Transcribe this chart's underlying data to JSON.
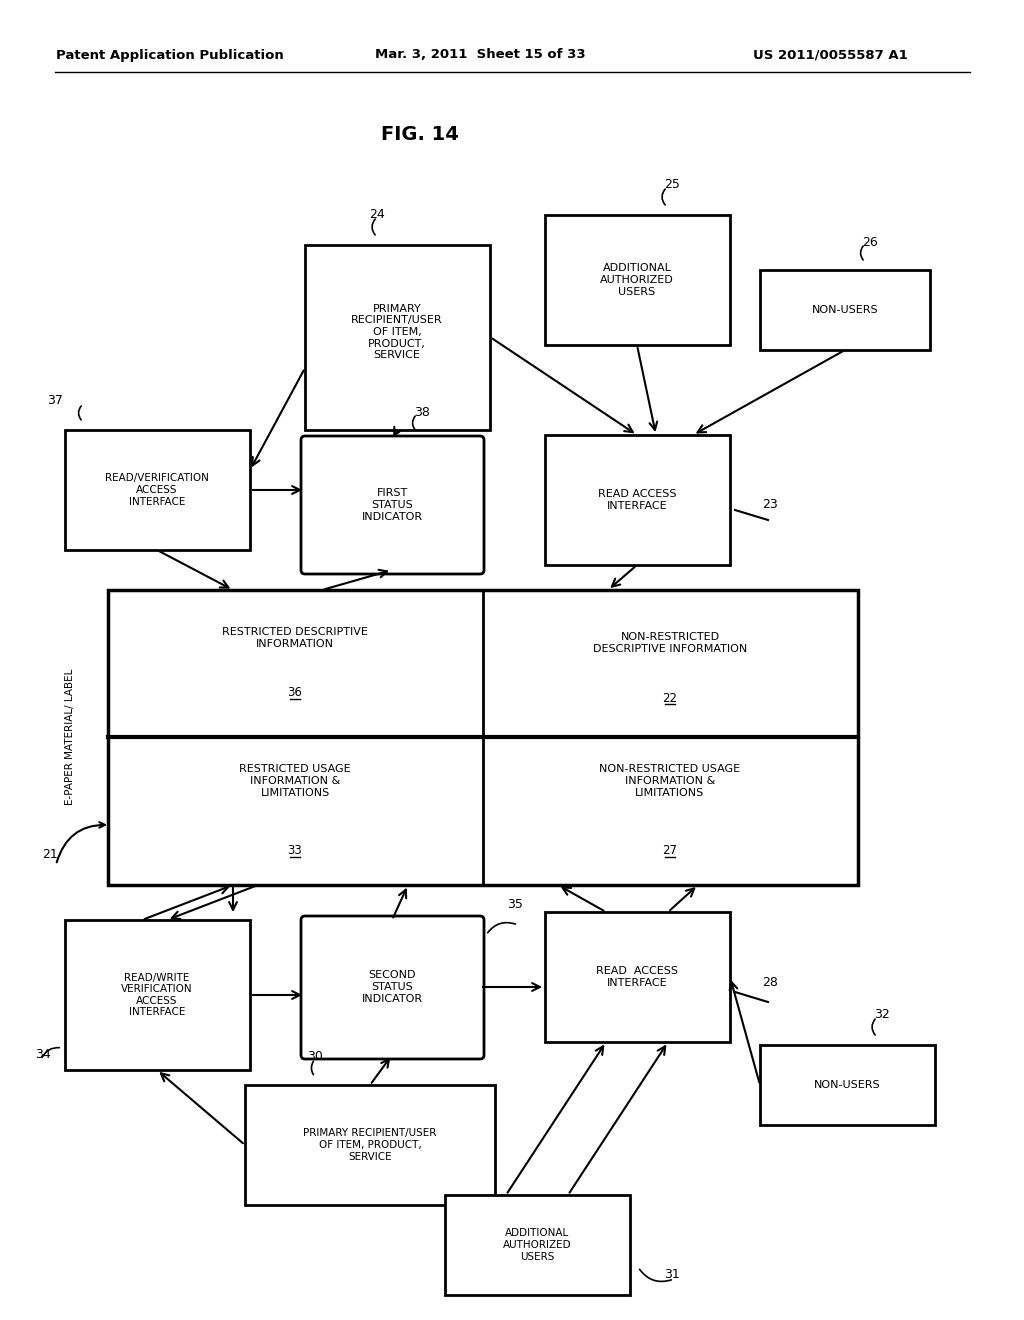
{
  "title": "FIG. 14",
  "header_left": "Patent Application Publication",
  "header_mid": "Mar. 3, 2011  Sheet 15 of 33",
  "header_right": "US 2011/0055587 A1",
  "bg_color": "#ffffff",
  "box_edge_color": "#000000",
  "text_color": "#000000",
  "font_size_header": 9.5,
  "font_size_title": 14,
  "font_size_box": 8.0,
  "font_size_label": 8.5
}
